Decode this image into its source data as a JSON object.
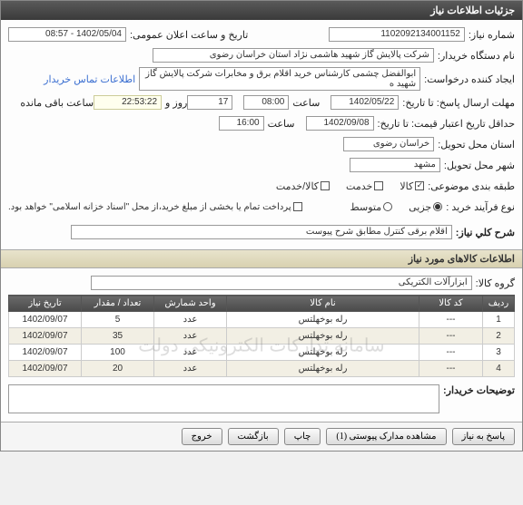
{
  "header": {
    "title": "جزئیات اطلاعات نیاز"
  },
  "form": {
    "req_no_label": "شماره نیاز:",
    "req_no": "1102092134001152",
    "announce_label": "تاریخ و ساعت اعلان عمومی:",
    "announce": "1402/05/04 - 08:57",
    "buyer_label": "نام دستگاه خریدار:",
    "buyer": "شرکت پالایش گاز شهید هاشمی نژاد   استان خراسان رضوی",
    "creator_label": "ایجاد کننده درخواست:",
    "creator": "ابوالفضل چشمی کارشناس خرید اقلام برق و مخابرات شرکت پالایش گاز شهید ه",
    "contact_link": "اطلاعات تماس خریدار",
    "deadline_label": "مهلت ارسال پاسخ: تا تاریخ:",
    "deadline_date": "1402/05/22",
    "hour_label": "ساعت",
    "deadline_hour": "08:00",
    "day_and": "روز و",
    "deadline_day": "17",
    "remain_time": "22:53:22",
    "remain_label": "ساعت باقی مانده",
    "valid_label": "حداقل تاریخ اعتبار قیمت: تا تاریخ:",
    "valid_date": "1402/09/08",
    "valid_hour": "16:00",
    "province_label": "استان محل تحویل:",
    "province": "خراسان رضوی",
    "city_label": "شهر محل تحویل:",
    "city": "مشهد",
    "class_label": "طبقه بندی موضوعی:",
    "class_goods": "کالا",
    "class_service": "خدمت",
    "class_both": "کالا/خدمت",
    "buy_type_label": "نوع فرآیند خرید :",
    "buy_minor": "جزیی",
    "buy_mid": "متوسط",
    "pay_note": "پرداخت تمام یا بخشی از مبلغ خرید،از محل \"اسناد خزانه اسلامی\" خواهد بود.",
    "desc_label": "شرح کلي نياز:",
    "desc": "اقلام برقی کنترل مطابق شرح پیوست",
    "goods_section": "اطلاعات کالاهای مورد نیاز",
    "group_label": "گروه کالا:",
    "group": "ابزارآلات الکتریکی",
    "buyer_note_label": "توضیحات خریدار:",
    "watermark": "سامانه تدارکات الکترونیکی دولت"
  },
  "table": {
    "headers": [
      "ردیف",
      "کد کالا",
      "نام کالا",
      "واحد شمارش",
      "تعداد / مقدار",
      "تاریخ نیاز"
    ],
    "rows": [
      [
        "1",
        "---",
        "رله بوخهلتس",
        "عدد",
        "5",
        "1402/09/07"
      ],
      [
        "2",
        "---",
        "رله بوخهلتس",
        "عدد",
        "35",
        "1402/09/07"
      ],
      [
        "3",
        "---",
        "رله بوخهلتس",
        "عدد",
        "100",
        "1402/09/07"
      ],
      [
        "4",
        "---",
        "رله بوخهلتس",
        "عدد",
        "20",
        "1402/09/07"
      ]
    ],
    "col_widths": [
      "35px",
      "70px",
      "auto",
      "80px",
      "80px",
      "80px"
    ]
  },
  "buttons": {
    "reply": "پاسخ به نیاز",
    "attach": "مشاهده مدارک پیوستی (1)",
    "print": "چاپ",
    "back": "بازگشت",
    "exit": "خروج"
  },
  "colors": {
    "header_bg": "#4a4a4a",
    "section_bg": "#d8d1b0",
    "link": "#3b6fd1"
  }
}
